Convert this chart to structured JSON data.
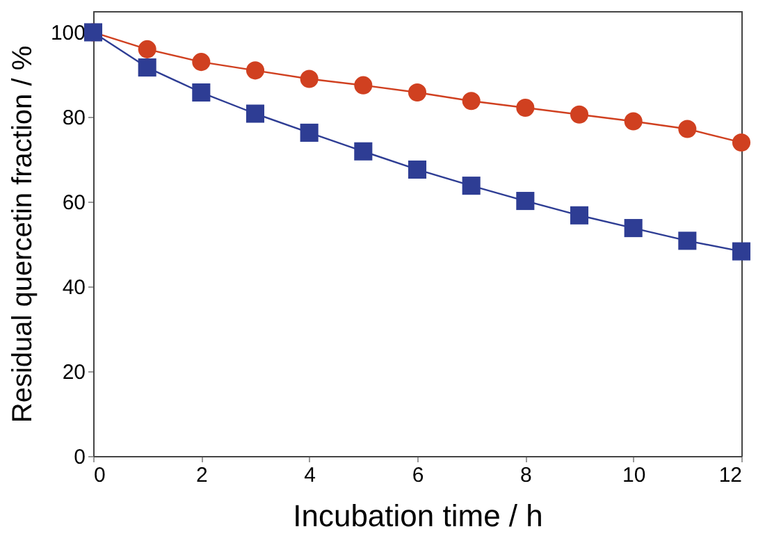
{
  "chart_data": {
    "type": "line",
    "xlabel": "Incubation time / h",
    "ylabel": "Residual quercetin fraction / %",
    "x": [
      0,
      1,
      2,
      3,
      4,
      5,
      6,
      7,
      8,
      9,
      10,
      11,
      12
    ],
    "series": [
      {
        "color": "#d04020",
        "marker": "circle",
        "values": [
          100,
          96,
          93,
          91,
          89,
          87.5,
          85.8,
          83.8,
          82.2,
          80.6,
          79,
          77.2,
          74
        ]
      },
      {
        "color": "#2e3d94",
        "marker": "square",
        "values": [
          100,
          91.7,
          85.8,
          80.8,
          76.3,
          71.9,
          67.6,
          63.8,
          60.2,
          56.8,
          53.8,
          50.8,
          48.3
        ]
      }
    ],
    "xlim": [
      0,
      12
    ],
    "xticks": [
      0,
      2,
      4,
      6,
      8,
      10,
      12
    ],
    "ylim": [
      0,
      105
    ],
    "yticks": [
      0,
      20,
      40,
      60,
      80,
      100
    ],
    "grid": false
  }
}
